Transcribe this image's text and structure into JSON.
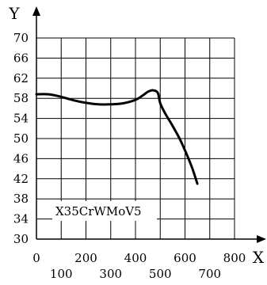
{
  "chart_data": {
    "type": "line",
    "xlabel": "X",
    "ylabel": "Y",
    "xlim": [
      0,
      800
    ],
    "ylim": [
      30,
      70
    ],
    "x_ticks_top_row": [
      "0",
      "200",
      "400",
      "600",
      "800"
    ],
    "x_ticks_bottom_row": [
      "100",
      "300",
      "500",
      "700"
    ],
    "y_ticks": [
      "30",
      "34",
      "38",
      "42",
      "46",
      "50",
      "54",
      "58",
      "62",
      "66",
      "70"
    ],
    "grid": true,
    "annotation": "X35CrWMoV5",
    "series": [
      {
        "x": [
          0,
          50,
          100,
          150,
          200,
          250,
          300,
          350,
          400,
          430,
          450,
          470,
          490,
          500,
          520,
          550,
          580,
          610,
          630,
          650
        ],
        "y": [
          58.8,
          58.8,
          58.3,
          57.6,
          57.1,
          56.8,
          56.8,
          57.0,
          57.7,
          58.6,
          59.3,
          59.6,
          59.1,
          57.0,
          55.0,
          52.5,
          49.8,
          46.5,
          44.0,
          41.0
        ]
      }
    ]
  }
}
